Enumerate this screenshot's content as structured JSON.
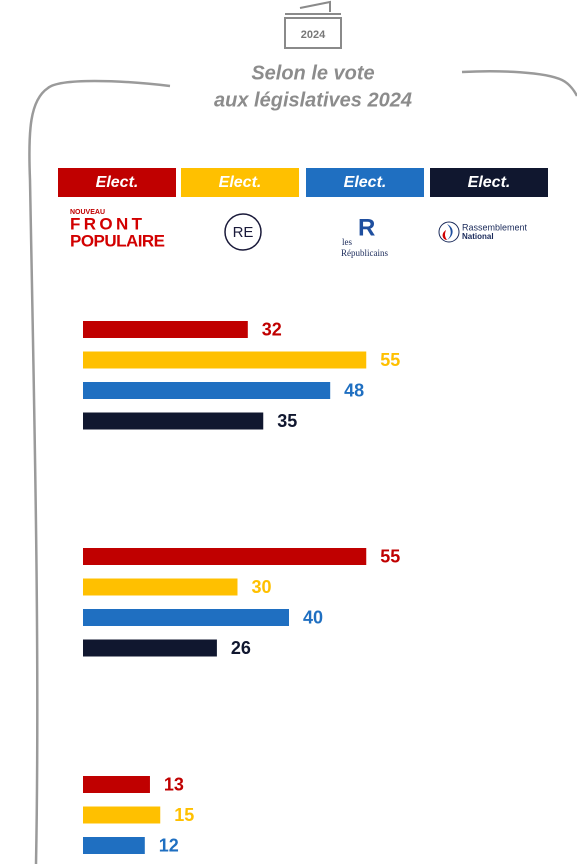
{
  "header": {
    "badge": "2024",
    "title_lines": [
      "Selon le vote",
      "aux législatives 2024"
    ]
  },
  "chart_data": {
    "type": "bar",
    "orientation": "horizontal",
    "categories": [
      null,
      null,
      null
    ],
    "series": [
      {
        "name": "Elect.",
        "color": "#c00000",
        "values": [
          32,
          55,
          13
        ]
      },
      {
        "name": "Elect.",
        "color": "#ffc000",
        "values": [
          55,
          30,
          15
        ]
      },
      {
        "name": "Elect.",
        "color": "#1f6fc1",
        "values": [
          48,
          40,
          12
        ]
      },
      {
        "name": "Elect.",
        "color": "#10172f",
        "values": [
          35,
          26,
          null
        ]
      }
    ],
    "logos": [
      {
        "lines": [
          "NOUVEAU",
          "FRONT",
          "POPULAIRE"
        ]
      },
      {
        "lines": [
          "RE"
        ]
      },
      {
        "lines": [
          "les",
          "R",
          "Républicains"
        ]
      },
      {
        "lines": [
          "Rassemblement",
          "National"
        ]
      }
    ]
  }
}
